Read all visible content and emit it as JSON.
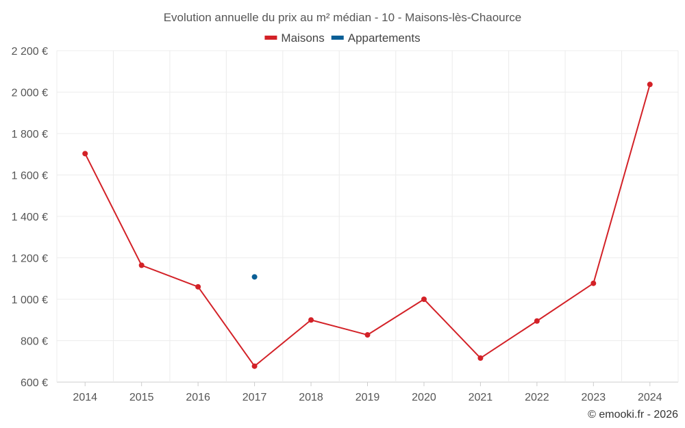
{
  "chart_data": {
    "type": "line",
    "title": "Evolution annuelle du prix au m² médian - 10 - Maisons-lès-Chaource",
    "categories": [
      "2014",
      "2015",
      "2016",
      "2017",
      "2018",
      "2019",
      "2020",
      "2021",
      "2022",
      "2023",
      "2024"
    ],
    "series": [
      {
        "name": "Maisons",
        "color": "#d32127",
        "values": [
          1703,
          1164,
          1060,
          677,
          900,
          828,
          1000,
          716,
          895,
          1077,
          2037
        ]
      },
      {
        "name": "Appartements",
        "color": "#0a5f96",
        "values": [
          null,
          null,
          null,
          1108,
          null,
          null,
          null,
          null,
          null,
          null,
          null
        ]
      }
    ],
    "ylim": [
      600,
      2200
    ],
    "yticks": [
      600,
      800,
      1000,
      1200,
      1400,
      1600,
      1800,
      2000,
      2200
    ],
    "ytick_labels": [
      "600 €",
      "800 €",
      "1 000 €",
      "1 200 €",
      "1 400 €",
      "1 600 €",
      "1 800 €",
      "2 000 €",
      "2 200 €"
    ],
    "xlabel": "",
    "ylabel": "",
    "grid": true,
    "legend_position": "top-center"
  },
  "credit": "© emooki.fr - 2026"
}
